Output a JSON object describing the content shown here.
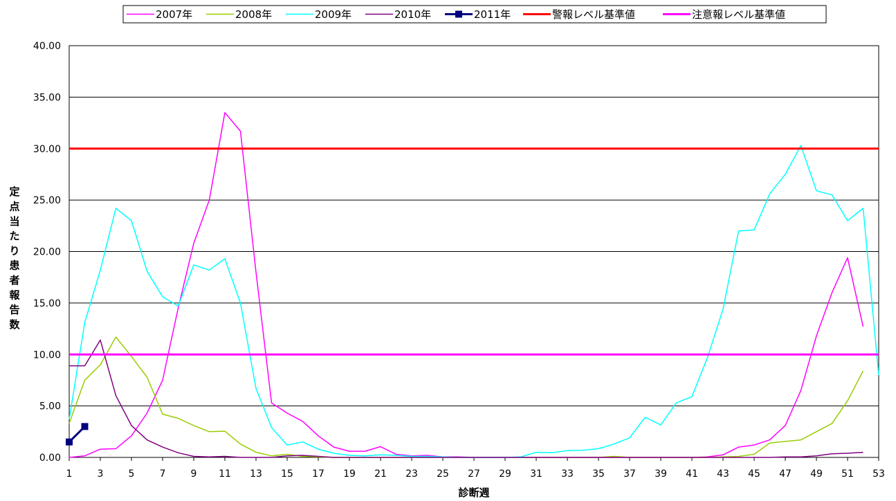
{
  "chart_data": {
    "type": "line",
    "title": "",
    "xlabel": "診断週",
    "ylabel": "定点当たり患者報告数",
    "xlim": [
      1,
      53
    ],
    "ylim": [
      0,
      40
    ],
    "yticks": [
      "0.00",
      "5.00",
      "10.00",
      "15.00",
      "20.00",
      "25.00",
      "30.00",
      "35.00",
      "40.00"
    ],
    "xticks": [
      1,
      3,
      5,
      7,
      9,
      11,
      13,
      15,
      17,
      19,
      21,
      23,
      25,
      27,
      29,
      31,
      33,
      35,
      37,
      39,
      41,
      43,
      45,
      47,
      49,
      51,
      53
    ],
    "grid": "horizontal",
    "legend_position": "top",
    "series": [
      {
        "name": "2007年",
        "color": "#ff00ff",
        "line_width": 1.5,
        "values": [
          0.0,
          0.15,
          0.8,
          0.85,
          2.1,
          4.3,
          7.5,
          14.5,
          20.8,
          25.0,
          33.5,
          31.7,
          18.0,
          5.3,
          4.3,
          3.5,
          2.1,
          1.0,
          0.6,
          0.6,
          1.05,
          0.3,
          0.15,
          0.2,
          0.05,
          0.05,
          0.0,
          0.0,
          0.0,
          0.0,
          0.0,
          0.0,
          0.0,
          0.0,
          0.0,
          0.0,
          0.0,
          0.0,
          0.0,
          0.0,
          0.0,
          0.05,
          0.25,
          1.0,
          1.2,
          1.7,
          3.1,
          6.5,
          11.8,
          16.0,
          19.4,
          12.7
        ]
      },
      {
        "name": "2008年",
        "color": "#99cc00",
        "line_width": 1.5,
        "values": [
          3.3,
          7.5,
          9.0,
          11.7,
          9.8,
          7.8,
          4.2,
          3.8,
          3.1,
          2.5,
          2.55,
          1.3,
          0.5,
          0.15,
          0.3,
          0.1,
          0.05,
          0.0,
          0.0,
          0.0,
          0.0,
          0.0,
          0.0,
          0.0,
          0.0,
          0.0,
          0.0,
          0.0,
          0.0,
          0.0,
          0.0,
          0.0,
          0.0,
          0.0,
          0.0,
          0.1,
          0.0,
          0.0,
          0.0,
          0.0,
          0.0,
          0.0,
          0.05,
          0.1,
          0.3,
          1.4,
          1.55,
          1.7,
          2.5,
          3.3,
          5.5,
          8.4
        ]
      },
      {
        "name": "2009年",
        "color": "#00ffff",
        "line_width": 1.5,
        "values": [
          3.7,
          13.1,
          18.2,
          24.2,
          23.0,
          18.1,
          15.6,
          14.7,
          18.7,
          18.2,
          19.3,
          15.0,
          6.7,
          2.9,
          1.2,
          1.5,
          0.8,
          0.4,
          0.2,
          0.15,
          0.25,
          0.2,
          0.1,
          0.1,
          0.05,
          0.0,
          0.0,
          0.0,
          0.0,
          0.05,
          0.5,
          0.45,
          0.65,
          0.7,
          0.85,
          1.3,
          1.9,
          3.9,
          3.15,
          5.3,
          5.9,
          9.7,
          14.4,
          22.0,
          22.1,
          25.6,
          27.5,
          30.3,
          25.9,
          25.5,
          23.0,
          24.2,
          8.0
        ]
      },
      {
        "name": "2010年",
        "color": "#800080",
        "line_width": 1.5,
        "values": [
          8.9,
          8.9,
          11.4,
          6.0,
          3.1,
          1.7,
          1.0,
          0.45,
          0.1,
          0.05,
          0.1,
          0.0,
          0.0,
          0.0,
          0.15,
          0.2,
          0.1,
          0.0,
          0.0,
          0.0,
          0.0,
          0.0,
          0.0,
          0.0,
          0.0,
          0.0,
          0.0,
          0.0,
          0.0,
          0.0,
          0.0,
          0.0,
          0.0,
          0.0,
          0.0,
          0.0,
          0.0,
          0.0,
          0.0,
          0.0,
          0.0,
          0.0,
          0.0,
          0.0,
          0.0,
          0.0,
          0.05,
          0.05,
          0.15,
          0.35,
          0.4,
          0.5
        ]
      },
      {
        "name": "2011年",
        "color": "#000080",
        "line_width": 3,
        "marker": "square",
        "values": [
          1.5,
          3.0
        ]
      },
      {
        "name": "警報レベル基準値",
        "color": "#ff0000",
        "line_width": 3,
        "constant": 30
      },
      {
        "name": "注意報レベル基準値",
        "color": "#ff00ff",
        "line_width": 3,
        "constant": 10
      }
    ]
  }
}
